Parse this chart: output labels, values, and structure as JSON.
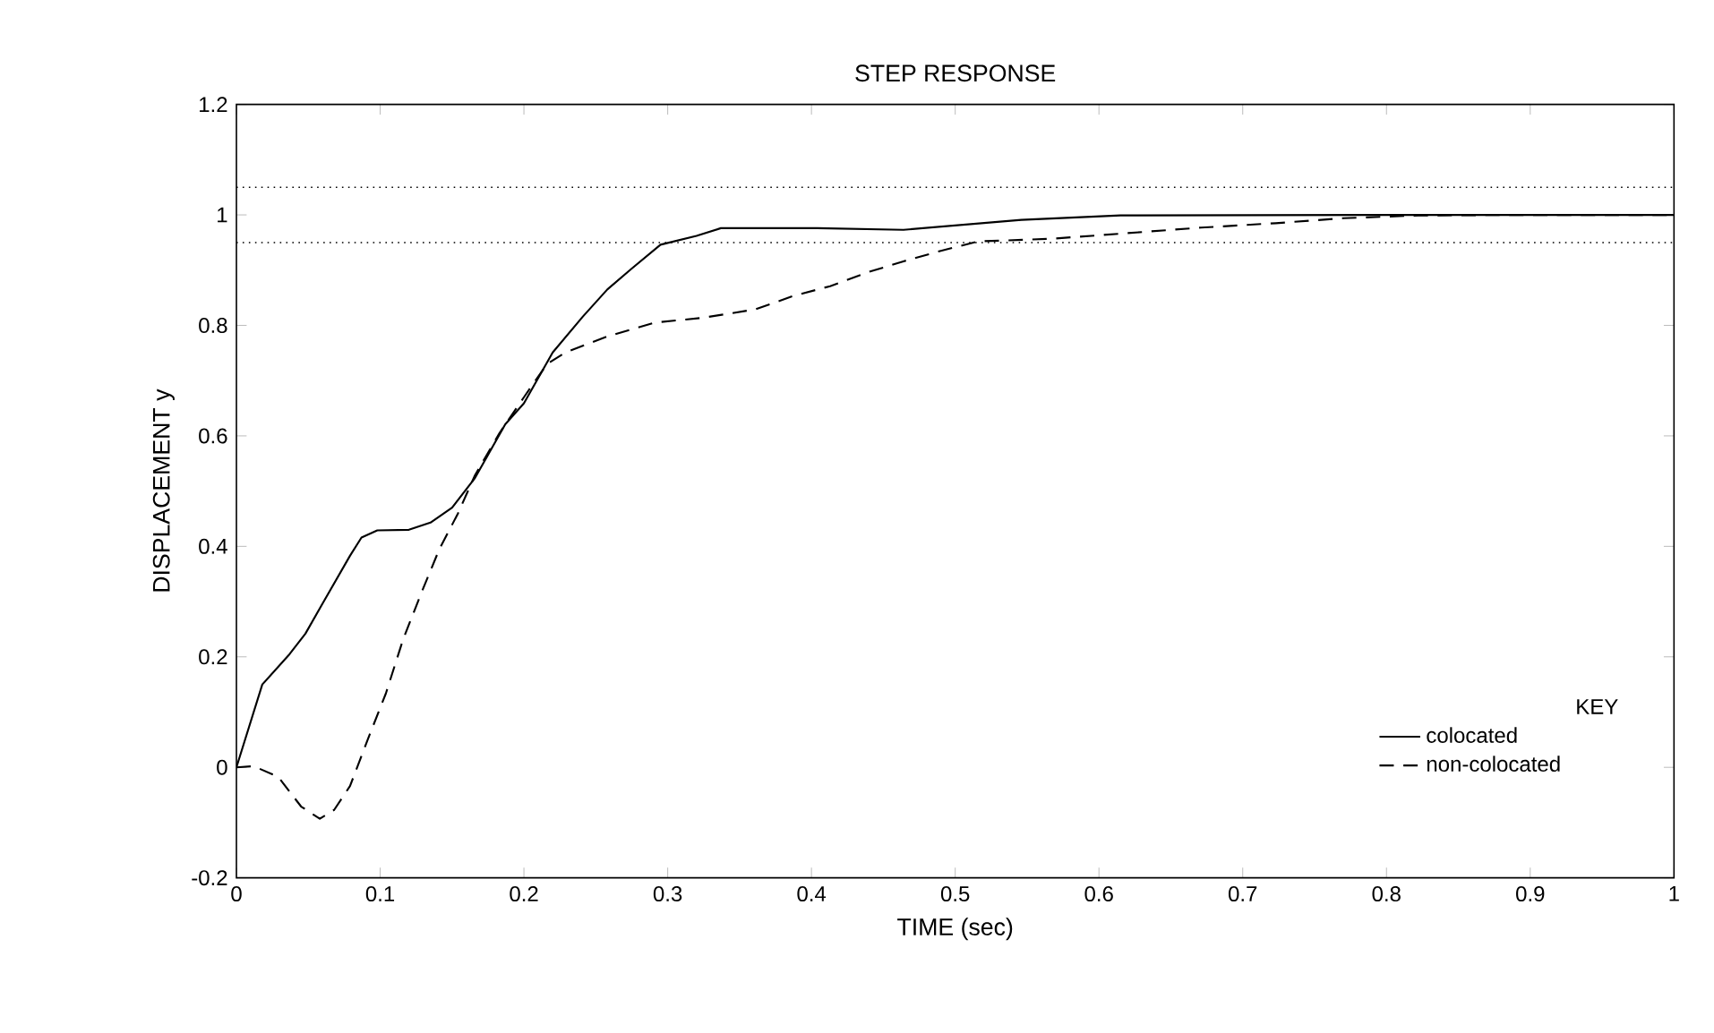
{
  "chart_data": {
    "type": "line",
    "title": "STEP RESPONSE",
    "xlabel": "TIME    (sec)",
    "ylabel": "DISPLACEMENT    y",
    "legend_title": "KEY",
    "legend": "bottom right",
    "grid": false,
    "marker": "none",
    "xlim": [
      0,
      1
    ],
    "ylim": [
      -0.2,
      1.2
    ],
    "xticks": [
      0,
      0.1,
      0.2,
      0.3,
      0.4,
      0.5,
      0.6,
      0.7,
      0.8,
      0.9,
      1
    ],
    "yticks": [
      -0.2,
      0,
      0.2,
      0.4,
      0.6,
      0.8,
      1,
      1.2
    ],
    "ref_lines": [
      {
        "axis": "y",
        "value": 1.05,
        "color": "#000000",
        "line_style": "dotted"
      },
      {
        "axis": "y",
        "value": 0.95,
        "color": "#000000",
        "line_style": "dotted"
      }
    ],
    "series": [
      {
        "name": "colocated",
        "color": "#000000",
        "line_style": "solid",
        "x": [
          0,
          0.018,
          0.037,
          0.048,
          0.06,
          0.079,
          0.087,
          0.098,
          0.12,
          0.135,
          0.15,
          0.166,
          0.187,
          0.2,
          0.22,
          0.241,
          0.258,
          0.275,
          0.295,
          0.32,
          0.337,
          0.366,
          0.404,
          0.464,
          0.546,
          0.615,
          0.8,
          1
        ],
        "values": [
          0,
          0.15,
          0.205,
          0.242,
          0.297,
          0.383,
          0.416,
          0.429,
          0.43,
          0.443,
          0.47,
          0.524,
          0.621,
          0.659,
          0.751,
          0.816,
          0.865,
          0.903,
          0.946,
          0.962,
          0.976,
          0.976,
          0.976,
          0.973,
          0.991,
          0.999,
          1.0,
          1.0
        ]
      },
      {
        "name": "non-colocated",
        "color": "#000000",
        "line_style": "dashed",
        "x": [
          0,
          0.012,
          0.029,
          0.045,
          0.058,
          0.068,
          0.079,
          0.091,
          0.104,
          0.116,
          0.129,
          0.141,
          0.154,
          0.166,
          0.183,
          0.2,
          0.216,
          0.229,
          0.258,
          0.291,
          0.325,
          0.361,
          0.387,
          0.413,
          0.439,
          0.464,
          0.49,
          0.516,
          0.568,
          0.62,
          0.671,
          0.723,
          0.77,
          0.822,
          0.895,
          1
        ],
        "values": [
          0,
          0.002,
          -0.017,
          -0.071,
          -0.093,
          -0.077,
          -0.034,
          0.048,
          0.134,
          0.232,
          0.318,
          0.394,
          0.459,
          0.529,
          0.605,
          0.67,
          0.73,
          0.751,
          0.78,
          0.805,
          0.814,
          0.829,
          0.853,
          0.871,
          0.896,
          0.916,
          0.935,
          0.952,
          0.957,
          0.967,
          0.977,
          0.985,
          0.994,
          0.999,
          1.0,
          1.0
        ]
      }
    ]
  }
}
